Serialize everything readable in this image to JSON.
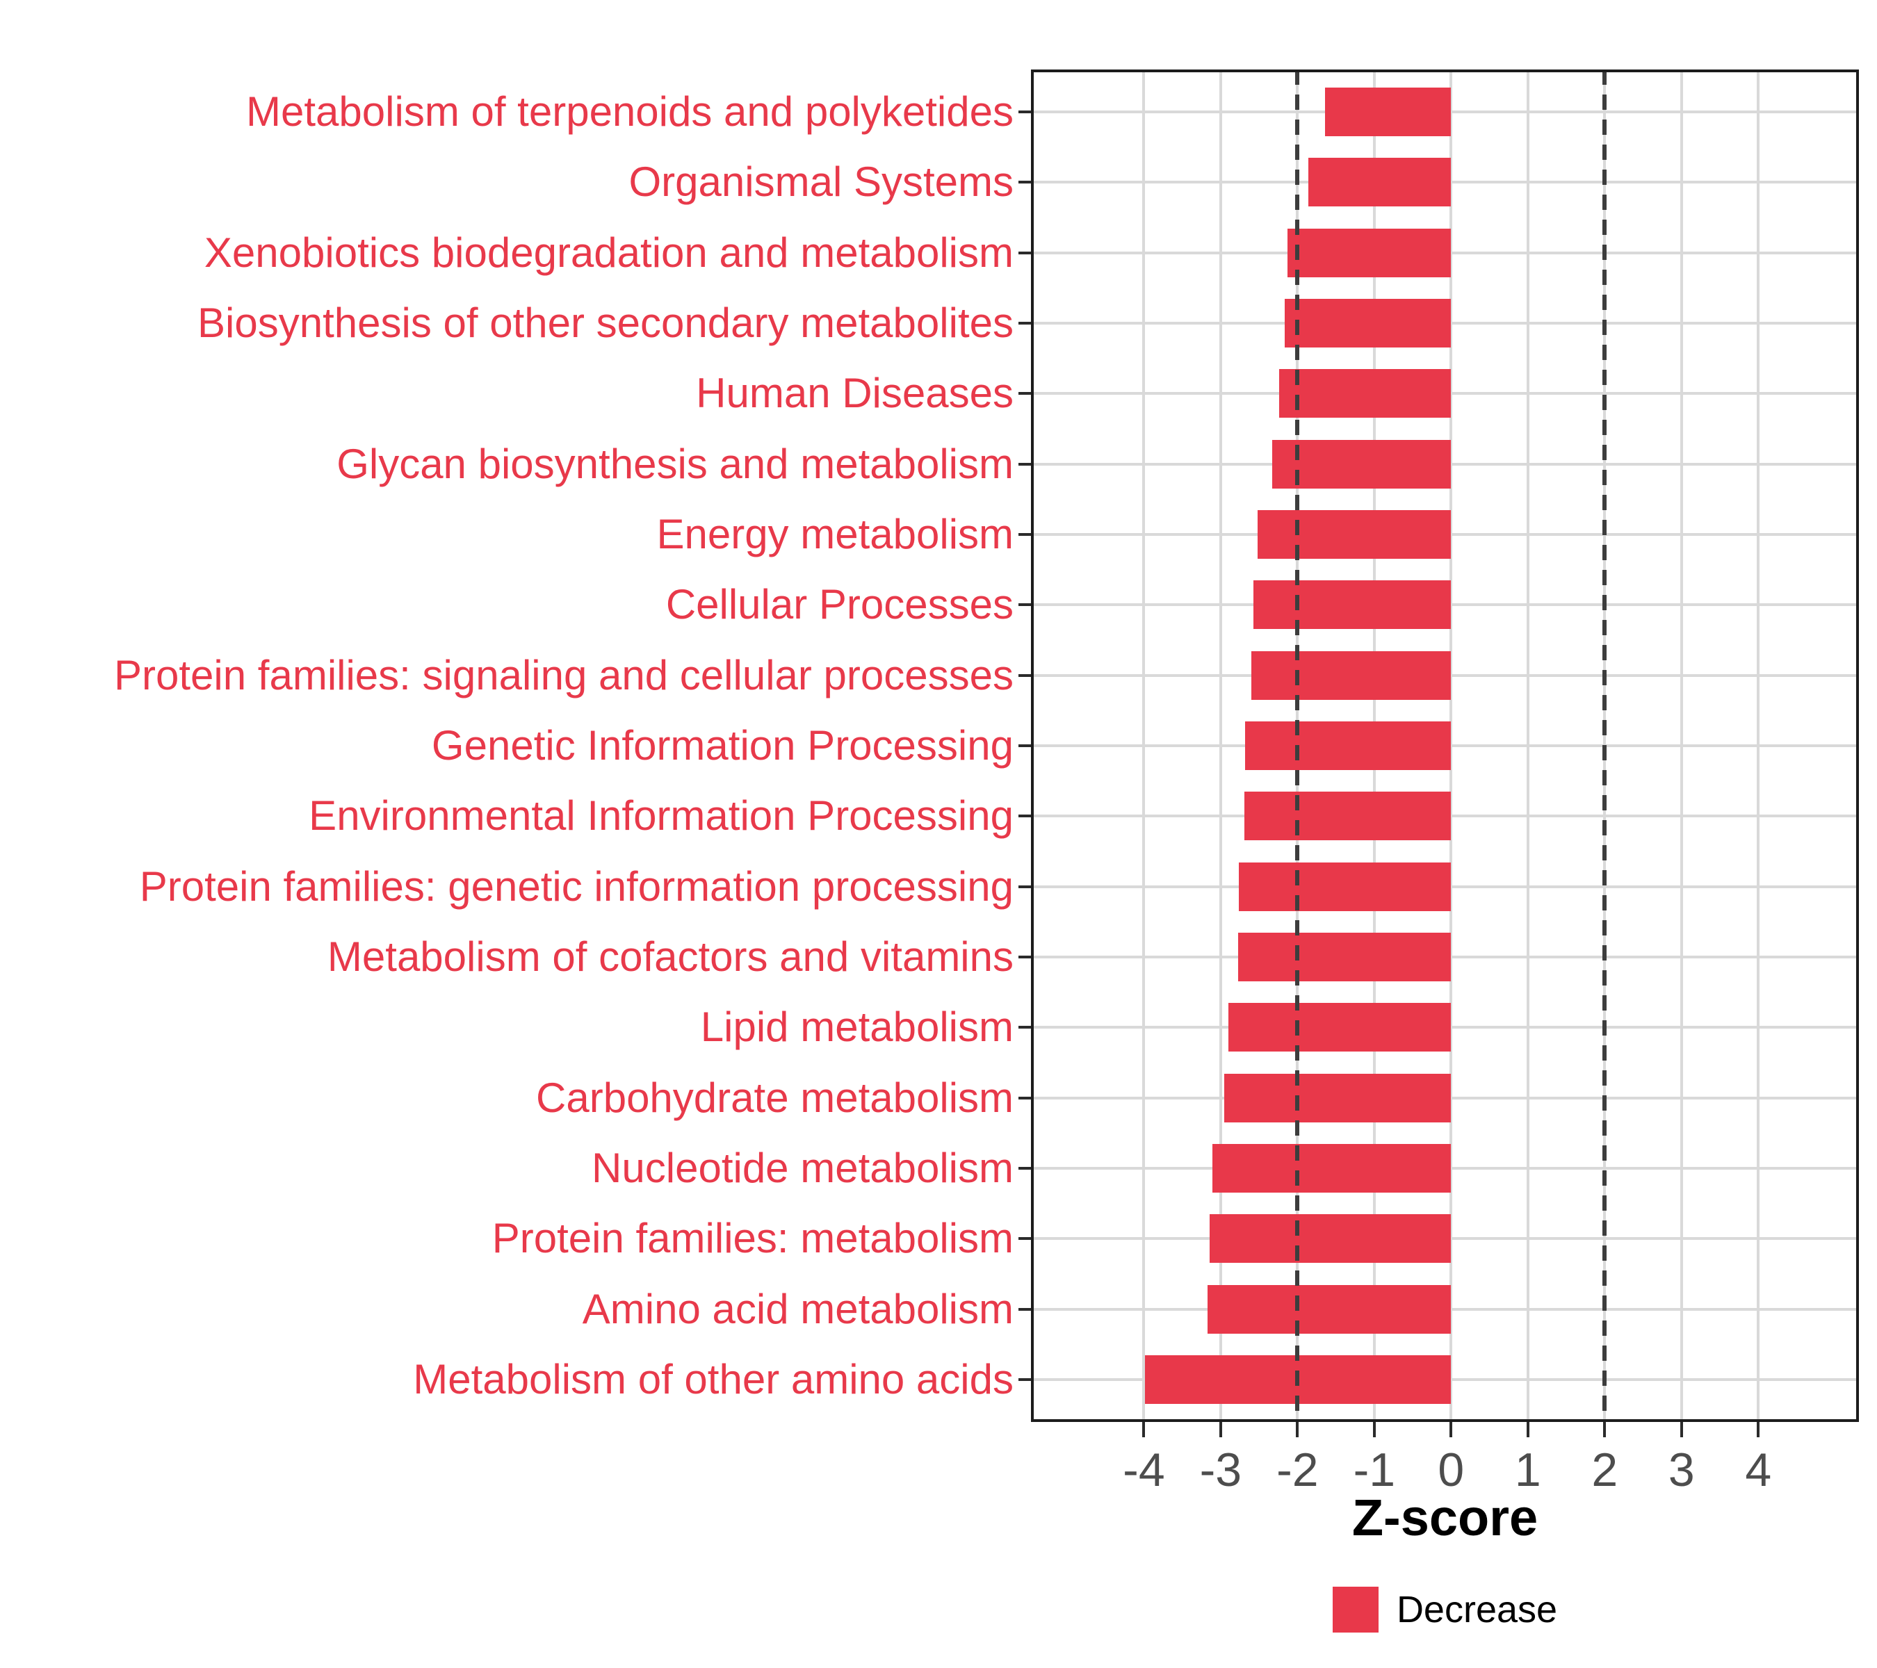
{
  "chart_data": {
    "type": "bar",
    "orientation": "horizontal",
    "title": "",
    "xlabel": "Z-score",
    "ylabel": "",
    "categories": [
      "Metabolism of terpenoids and polyketides",
      "Organismal Systems",
      "Xenobiotics biodegradation and metabolism",
      "Biosynthesis of other secondary metabolites",
      "Human Diseases",
      "Glycan biosynthesis and metabolism",
      "Energy metabolism",
      "Cellular Processes",
      "Protein families: signaling and cellular processes",
      "Genetic Information Processing",
      "Environmental Information Processing",
      "Protein families: genetic information processing",
      "Metabolism of cofactors and vitamins",
      "Lipid metabolism",
      "Carbohydrate metabolism",
      "Nucleotide metabolism",
      "Protein families: metabolism",
      "Amino acid metabolism",
      "Metabolism of other amino acids"
    ],
    "series": [
      {
        "name": "Decrease",
        "color": "#e8384a",
        "values": [
          -1.64,
          -1.86,
          -2.13,
          -2.17,
          -2.24,
          -2.33,
          -2.52,
          -2.57,
          -2.6,
          -2.68,
          -2.69,
          -2.76,
          -2.77,
          -2.9,
          -2.95,
          -3.11,
          -3.14,
          -3.17,
          -3.99
        ]
      }
    ],
    "x_ticks": [
      -4,
      -3,
      -2,
      -1,
      0,
      1,
      2,
      3,
      4
    ],
    "xlim": [
      -5.47,
      5.31
    ],
    "reference_lines": [
      -2,
      2
    ],
    "grid": true,
    "legend_position": "bottom",
    "bar_relative_width": 0.7
  },
  "colors": {
    "bar_fill": "#e8384a",
    "category_label": "#e8394a",
    "tick_label": "#4d4d4d",
    "tick_mark": "#2b2b2b",
    "gridline": "#d9d9d9",
    "reference_line": "#3d3d3d",
    "panel_border": "#1c1c1c",
    "background": "#ffffff"
  }
}
